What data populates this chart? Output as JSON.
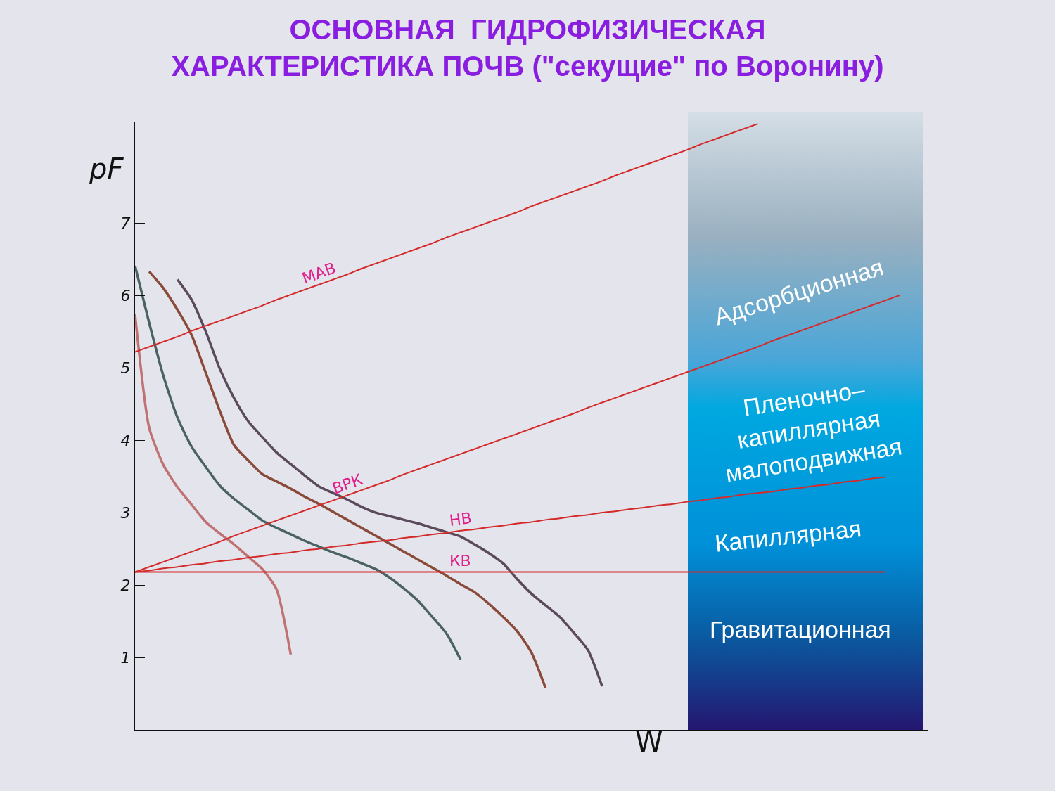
{
  "chart_data": {
    "type": "line",
    "title": "ОСНОВНАЯ  ГИДРОФИЗИЧЕСКАЯ\nХАРАКТЕРИСТИКА ПОЧВ (\"секущие\" по Воронину)",
    "xlabel": "W",
    "ylabel": "pF",
    "categories": [
      null,
      null,
      null,
      null,
      null,
      null,
      null,
      null,
      null,
      null,
      null,
      null,
      null,
      null,
      null,
      null,
      null,
      null,
      null,
      null,
      null,
      null,
      null,
      null,
      null,
      null,
      null,
      null,
      null,
      null,
      null,
      null,
      null,
      null,
      null,
      null,
      null,
      null,
      null,
      null,
      null,
      null,
      null,
      null,
      null,
      null,
      null,
      null,
      null,
      null,
      null,
      null,
      null,
      null,
      null
    ],
    "ylim": [
      0,
      8.4
    ],
    "yticks": [
      1,
      2,
      3,
      4,
      5,
      6,
      7
    ],
    "tick_labels": "y",
    "grid": false,
    "legend": false,
    "line_style": "solid",
    "series": [
      {
        "color": "#c07272",
        "values": [
          5.74,
          4.17,
          3.66,
          3.35,
          3.11,
          2.87,
          2.71,
          2.56,
          2.39,
          2.22,
          1.94,
          1.04,
          null,
          null,
          null,
          null,
          null,
          null,
          null,
          null,
          null,
          null,
          null,
          null,
          null,
          null,
          null,
          null,
          null,
          null,
          null,
          null,
          null,
          null,
          null,
          null,
          null,
          null,
          null,
          null,
          null,
          null,
          null,
          null,
          null,
          null,
          null,
          null,
          null,
          null,
          null,
          null,
          null,
          null,
          null
        ]
      },
      {
        "color": "#4a6262",
        "values": [
          6.41,
          5.62,
          4.89,
          4.31,
          3.91,
          3.63,
          3.37,
          3.19,
          3.04,
          2.89,
          2.79,
          2.7,
          2.61,
          2.53,
          2.45,
          2.38,
          2.3,
          2.22,
          2.1,
          1.95,
          1.78,
          1.56,
          1.33,
          0.97,
          null,
          null,
          null,
          null,
          null,
          null,
          null,
          null,
          null,
          null,
          null,
          null,
          null,
          null,
          null,
          null,
          null,
          null,
          null,
          null,
          null,
          null,
          null,
          null,
          null,
          null,
          null,
          null,
          null,
          null,
          null
        ]
      },
      {
        "color": "#8a4a3a",
        "values": [
          null,
          6.33,
          6.1,
          5.8,
          5.45,
          4.93,
          4.4,
          3.93,
          3.72,
          3.53,
          3.43,
          3.33,
          3.22,
          3.12,
          3.01,
          2.9,
          2.79,
          2.68,
          2.57,
          2.46,
          2.35,
          2.24,
          2.13,
          2.01,
          1.9,
          1.74,
          1.56,
          1.36,
          1.07,
          0.58,
          null,
          null,
          null,
          null,
          null,
          null,
          null,
          null,
          null,
          null,
          null,
          null,
          null,
          null,
          null,
          null,
          null,
          null,
          null,
          null,
          null,
          null,
          null,
          null,
          null
        ]
      },
      {
        "color": "#5a4a5c",
        "values": [
          null,
          null,
          null,
          6.22,
          5.94,
          5.5,
          4.98,
          4.58,
          4.26,
          4.04,
          3.83,
          3.67,
          3.51,
          3.36,
          3.27,
          3.18,
          3.08,
          3.0,
          2.95,
          2.9,
          2.85,
          2.79,
          2.73,
          2.67,
          2.56,
          2.44,
          2.3,
          2.08,
          1.88,
          1.72,
          1.56,
          1.34,
          1.1,
          0.6,
          null,
          null,
          null,
          null,
          null,
          null,
          null,
          null,
          null,
          null,
          null,
          null,
          null,
          null,
          null,
          null,
          null,
          null,
          null,
          null,
          null
        ]
      },
      {
        "name": "МАВ",
        "color": "#d42a2a",
        "values": [
          5.22,
          5.29,
          5.36,
          5.43,
          5.51,
          5.58,
          5.65,
          5.72,
          5.79,
          5.86,
          5.94,
          6.01,
          6.08,
          6.15,
          6.22,
          6.29,
          6.37,
          6.44,
          6.51,
          6.58,
          6.65,
          6.72,
          6.8,
          6.87,
          6.94,
          7.01,
          7.08,
          7.15,
          7.23,
          7.3,
          7.37,
          7.44,
          7.51,
          7.58,
          7.66,
          7.73,
          7.8,
          7.87,
          7.94,
          8.01,
          8.09,
          8.16,
          8.23,
          8.3,
          8.37,
          null,
          null,
          null,
          null,
          null,
          null,
          null,
          null,
          null,
          null
        ]
      },
      {
        "name": "ВРК",
        "color": "#d42a2a",
        "values": [
          2.18,
          2.25,
          2.32,
          2.39,
          2.46,
          2.53,
          2.6,
          2.68,
          2.75,
          2.82,
          2.89,
          2.96,
          3.03,
          3.1,
          3.17,
          3.24,
          3.31,
          3.38,
          3.45,
          3.53,
          3.6,
          3.67,
          3.74,
          3.81,
          3.88,
          3.95,
          4.02,
          4.09,
          4.16,
          4.23,
          4.3,
          4.37,
          4.45,
          4.52,
          4.59,
          4.66,
          4.73,
          4.8,
          4.87,
          4.94,
          5.01,
          5.08,
          5.15,
          5.22,
          5.29,
          5.37,
          5.44,
          5.51,
          5.58,
          5.65,
          5.72,
          5.79,
          5.86,
          5.93,
          6.0
        ]
      },
      {
        "name": "НВ",
        "color": "#d42a2a",
        "values": [
          2.18,
          2.2,
          2.23,
          2.25,
          2.28,
          2.3,
          2.33,
          2.35,
          2.38,
          2.4,
          2.43,
          2.45,
          2.48,
          2.5,
          2.53,
          2.55,
          2.58,
          2.6,
          2.62,
          2.65,
          2.67,
          2.7,
          2.72,
          2.75,
          2.77,
          2.8,
          2.82,
          2.85,
          2.87,
          2.9,
          2.92,
          2.95,
          2.97,
          3.0,
          3.02,
          3.05,
          3.07,
          3.1,
          3.12,
          3.15,
          3.17,
          3.2,
          3.22,
          3.25,
          3.27,
          3.29,
          3.32,
          3.34,
          3.37,
          3.39,
          3.42,
          3.44,
          3.47,
          3.49,
          null
        ]
      },
      {
        "name": "КВ",
        "color": "#d42a2a",
        "values": [
          2.18,
          2.18,
          2.18,
          2.18,
          2.18,
          2.18,
          2.18,
          2.18,
          2.18,
          2.18,
          2.18,
          2.18,
          2.18,
          2.18,
          2.18,
          2.18,
          2.18,
          2.18,
          2.18,
          2.18,
          2.18,
          2.18,
          2.18,
          2.18,
          2.18,
          2.18,
          2.18,
          2.18,
          2.18,
          2.18,
          2.18,
          2.18,
          2.18,
          2.18,
          2.18,
          2.18,
          2.18,
          2.18,
          2.18,
          2.18,
          2.18,
          2.18,
          2.18,
          2.18,
          2.18,
          2.18,
          2.18,
          2.18,
          2.18,
          2.18,
          2.18,
          2.18,
          2.18,
          2.18,
          null
        ]
      }
    ],
    "annotations": [
      "Адсорбционная",
      "Пленочно–\nкапиллярная\nмалоподвижная",
      "Капиллярная",
      "Гравитационная"
    ]
  }
}
